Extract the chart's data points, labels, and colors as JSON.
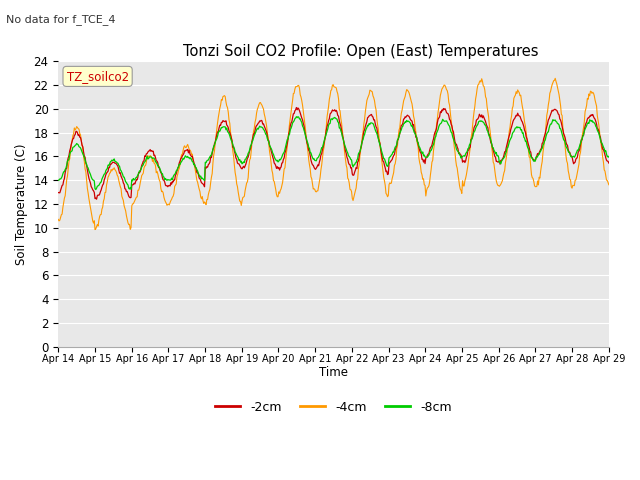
{
  "title": "Tonzi Soil CO2 Profile: Open (East) Temperatures",
  "suptitle": "No data for f_TCE_4",
  "ylabel": "Soil Temperature (C)",
  "xlabel": "Time",
  "inset_label": "TZ_soilco2",
  "ylim": [
    0,
    24
  ],
  "yticks": [
    0,
    2,
    4,
    6,
    8,
    10,
    12,
    14,
    16,
    18,
    20,
    22,
    24
  ],
  "xtick_labels": [
    "Apr 14",
    "Apr 15",
    "Apr 16",
    "Apr 17",
    "Apr 18",
    "Apr 19",
    "Apr 20",
    "Apr 21",
    "Apr 22",
    "Apr 23",
    "Apr 24",
    "Apr 25",
    "Apr 26",
    "Apr 27",
    "Apr 28",
    "Apr 29"
  ],
  "color_2cm": "#cc0000",
  "color_4cm": "#ff9900",
  "color_8cm": "#00cc00",
  "bg_color": "#e8e8e8",
  "legend_labels": [
    "-2cm",
    "-4cm",
    "-8cm"
  ]
}
